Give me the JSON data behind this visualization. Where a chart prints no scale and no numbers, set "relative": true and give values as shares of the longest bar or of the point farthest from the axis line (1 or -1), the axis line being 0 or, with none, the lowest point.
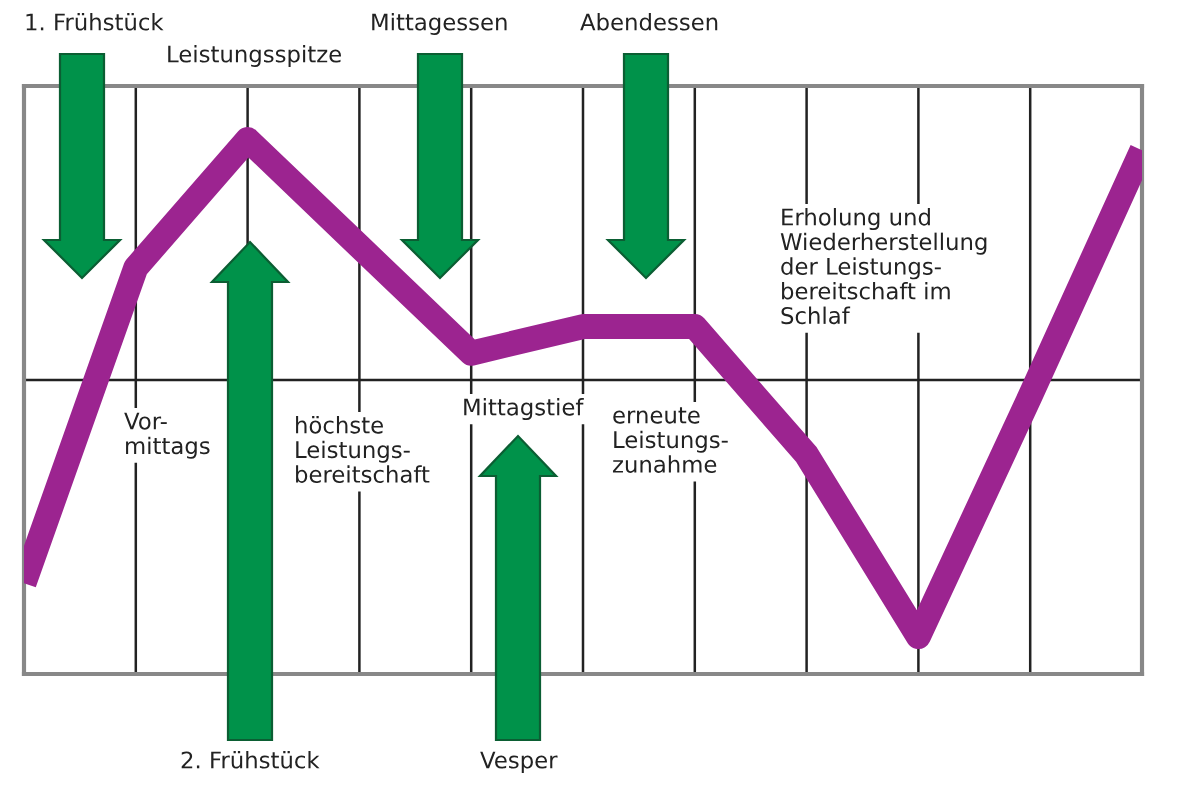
{
  "chart_data": {
    "type": "line",
    "relative": true,
    "categories": [
      null,
      null,
      null,
      null,
      null,
      null,
      null,
      null,
      null,
      null,
      null
    ],
    "series": [
      {
        "color": "#9c2490",
        "values": [
          0.17,
          0.76,
          1.0,
          0.8,
          0.6,
          0.65,
          0.65,
          0.41,
          0.07,
          0.52,
          0.98
        ]
      }
    ],
    "grid": "x",
    "ref_lines": [
      {
        "axis": "y",
        "value": 0.55,
        "color": "#222222"
      }
    ],
    "annotations": [
      "1. Frühstück",
      "Leistungsspitze",
      "Mittagessen",
      "Abendessen",
      "Vor-\nmittags",
      "höchste\nLeistungs-\nbereitschaft",
      "Mittagstief",
      "erneute\nLeistungs-\nzunahme",
      "Erholung und\nWiederherstellung\nder Leistungs-\nbereitschaft im\nSchlaf",
      "2. Frühstück",
      "Vesper"
    ]
  }
}
